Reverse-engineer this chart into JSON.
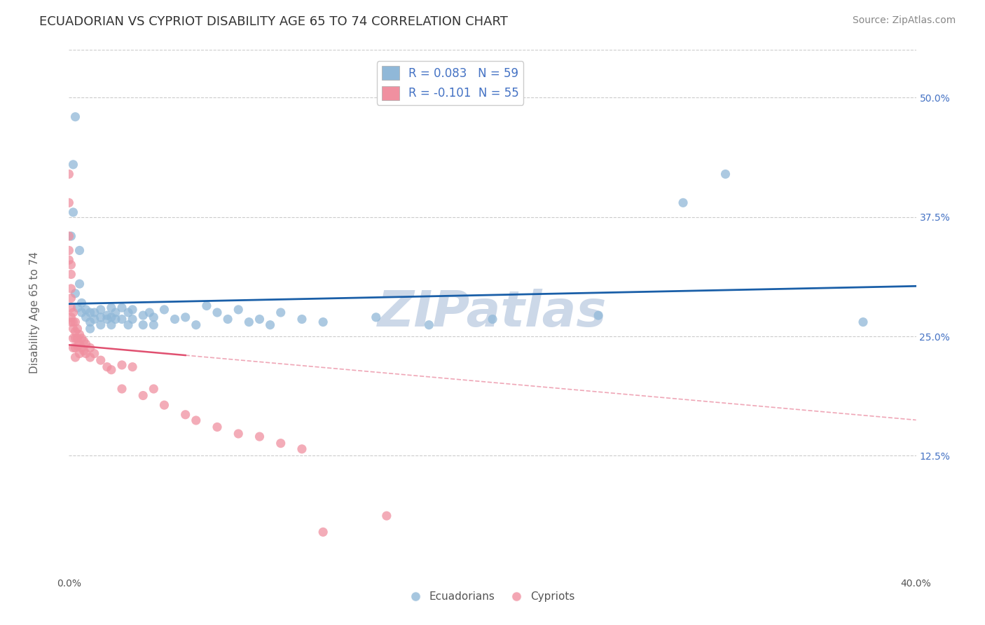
{
  "title": "ECUADORIAN VS CYPRIOT DISABILITY AGE 65 TO 74 CORRELATION CHART",
  "source_text": "Source: ZipAtlas.com",
  "ylabel": "Disability Age 65 to 74",
  "xmin": 0.0,
  "xmax": 0.4,
  "ymin": 0.0,
  "ymax": 0.55,
  "yticks": [
    0.125,
    0.25,
    0.375,
    0.5
  ],
  "ytick_labels": [
    "12.5%",
    "25.0%",
    "37.5%",
    "50.0%"
  ],
  "xtick_labels": [
    "0.0%",
    "40.0%"
  ],
  "legend_label_blue": "R = 0.083   N = 59",
  "legend_label_pink": "R = -0.101  N = 55",
  "watermark": "ZIPatlas",
  "blue_r": 0.083,
  "pink_r": -0.101,
  "blue_color": "#90b8d8",
  "pink_color": "#f090a0",
  "blue_line_color": "#1a5fa8",
  "pink_line_color": "#e05070",
  "blue_scatter": [
    [
      0.003,
      0.48
    ],
    [
      0.002,
      0.43
    ],
    [
      0.002,
      0.38
    ],
    [
      0.001,
      0.355
    ],
    [
      0.005,
      0.34
    ],
    [
      0.005,
      0.305
    ],
    [
      0.003,
      0.295
    ],
    [
      0.006,
      0.285
    ],
    [
      0.006,
      0.275
    ],
    [
      0.004,
      0.28
    ],
    [
      0.008,
      0.278
    ],
    [
      0.008,
      0.27
    ],
    [
      0.01,
      0.275
    ],
    [
      0.01,
      0.265
    ],
    [
      0.01,
      0.258
    ],
    [
      0.012,
      0.275
    ],
    [
      0.012,
      0.268
    ],
    [
      0.015,
      0.278
    ],
    [
      0.015,
      0.27
    ],
    [
      0.015,
      0.262
    ],
    [
      0.018,
      0.272
    ],
    [
      0.018,
      0.268
    ],
    [
      0.02,
      0.28
    ],
    [
      0.02,
      0.27
    ],
    [
      0.02,
      0.262
    ],
    [
      0.022,
      0.275
    ],
    [
      0.022,
      0.268
    ],
    [
      0.025,
      0.28
    ],
    [
      0.025,
      0.268
    ],
    [
      0.028,
      0.275
    ],
    [
      0.028,
      0.262
    ],
    [
      0.03,
      0.278
    ],
    [
      0.03,
      0.268
    ],
    [
      0.035,
      0.272
    ],
    [
      0.035,
      0.262
    ],
    [
      0.038,
      0.275
    ],
    [
      0.04,
      0.27
    ],
    [
      0.04,
      0.262
    ],
    [
      0.045,
      0.278
    ],
    [
      0.05,
      0.268
    ],
    [
      0.055,
      0.27
    ],
    [
      0.06,
      0.262
    ],
    [
      0.065,
      0.282
    ],
    [
      0.07,
      0.275
    ],
    [
      0.075,
      0.268
    ],
    [
      0.08,
      0.278
    ],
    [
      0.085,
      0.265
    ],
    [
      0.09,
      0.268
    ],
    [
      0.095,
      0.262
    ],
    [
      0.1,
      0.275
    ],
    [
      0.11,
      0.268
    ],
    [
      0.12,
      0.265
    ],
    [
      0.145,
      0.27
    ],
    [
      0.17,
      0.262
    ],
    [
      0.2,
      0.268
    ],
    [
      0.25,
      0.272
    ],
    [
      0.29,
      0.39
    ],
    [
      0.31,
      0.42
    ],
    [
      0.375,
      0.265
    ]
  ],
  "pink_scatter": [
    [
      0.0,
      0.42
    ],
    [
      0.0,
      0.39
    ],
    [
      0.0,
      0.355
    ],
    [
      0.0,
      0.34
    ],
    [
      0.0,
      0.33
    ],
    [
      0.001,
      0.325
    ],
    [
      0.001,
      0.315
    ],
    [
      0.001,
      0.3
    ],
    [
      0.001,
      0.29
    ],
    [
      0.001,
      0.28
    ],
    [
      0.001,
      0.27
    ],
    [
      0.001,
      0.265
    ],
    [
      0.002,
      0.275
    ],
    [
      0.002,
      0.265
    ],
    [
      0.002,
      0.258
    ],
    [
      0.002,
      0.248
    ],
    [
      0.002,
      0.238
    ],
    [
      0.003,
      0.265
    ],
    [
      0.003,
      0.255
    ],
    [
      0.003,
      0.248
    ],
    [
      0.003,
      0.238
    ],
    [
      0.003,
      0.228
    ],
    [
      0.004,
      0.258
    ],
    [
      0.004,
      0.248
    ],
    [
      0.004,
      0.24
    ],
    [
      0.005,
      0.252
    ],
    [
      0.005,
      0.242
    ],
    [
      0.005,
      0.232
    ],
    [
      0.006,
      0.248
    ],
    [
      0.006,
      0.238
    ],
    [
      0.007,
      0.245
    ],
    [
      0.007,
      0.235
    ],
    [
      0.008,
      0.242
    ],
    [
      0.008,
      0.232
    ],
    [
      0.01,
      0.238
    ],
    [
      0.01,
      0.228
    ],
    [
      0.012,
      0.232
    ],
    [
      0.015,
      0.225
    ],
    [
      0.018,
      0.218
    ],
    [
      0.02,
      0.215
    ],
    [
      0.025,
      0.195
    ],
    [
      0.025,
      0.22
    ],
    [
      0.03,
      0.218
    ],
    [
      0.035,
      0.188
    ],
    [
      0.04,
      0.195
    ],
    [
      0.045,
      0.178
    ],
    [
      0.055,
      0.168
    ],
    [
      0.06,
      0.162
    ],
    [
      0.07,
      0.155
    ],
    [
      0.08,
      0.148
    ],
    [
      0.09,
      0.145
    ],
    [
      0.1,
      0.138
    ],
    [
      0.11,
      0.132
    ],
    [
      0.12,
      0.045
    ],
    [
      0.15,
      0.062
    ]
  ],
  "grid_color": "#cccccc",
  "background_color": "#ffffff",
  "title_color": "#333333",
  "axis_label_color": "#666666",
  "ytick_color": "#4472c4",
  "xtick_color": "#555555",
  "watermark_color": "#ccd8e8",
  "watermark_fontsize": 52,
  "title_fontsize": 13,
  "label_fontsize": 11,
  "tick_fontsize": 10,
  "legend_fontsize": 12,
  "source_fontsize": 10
}
